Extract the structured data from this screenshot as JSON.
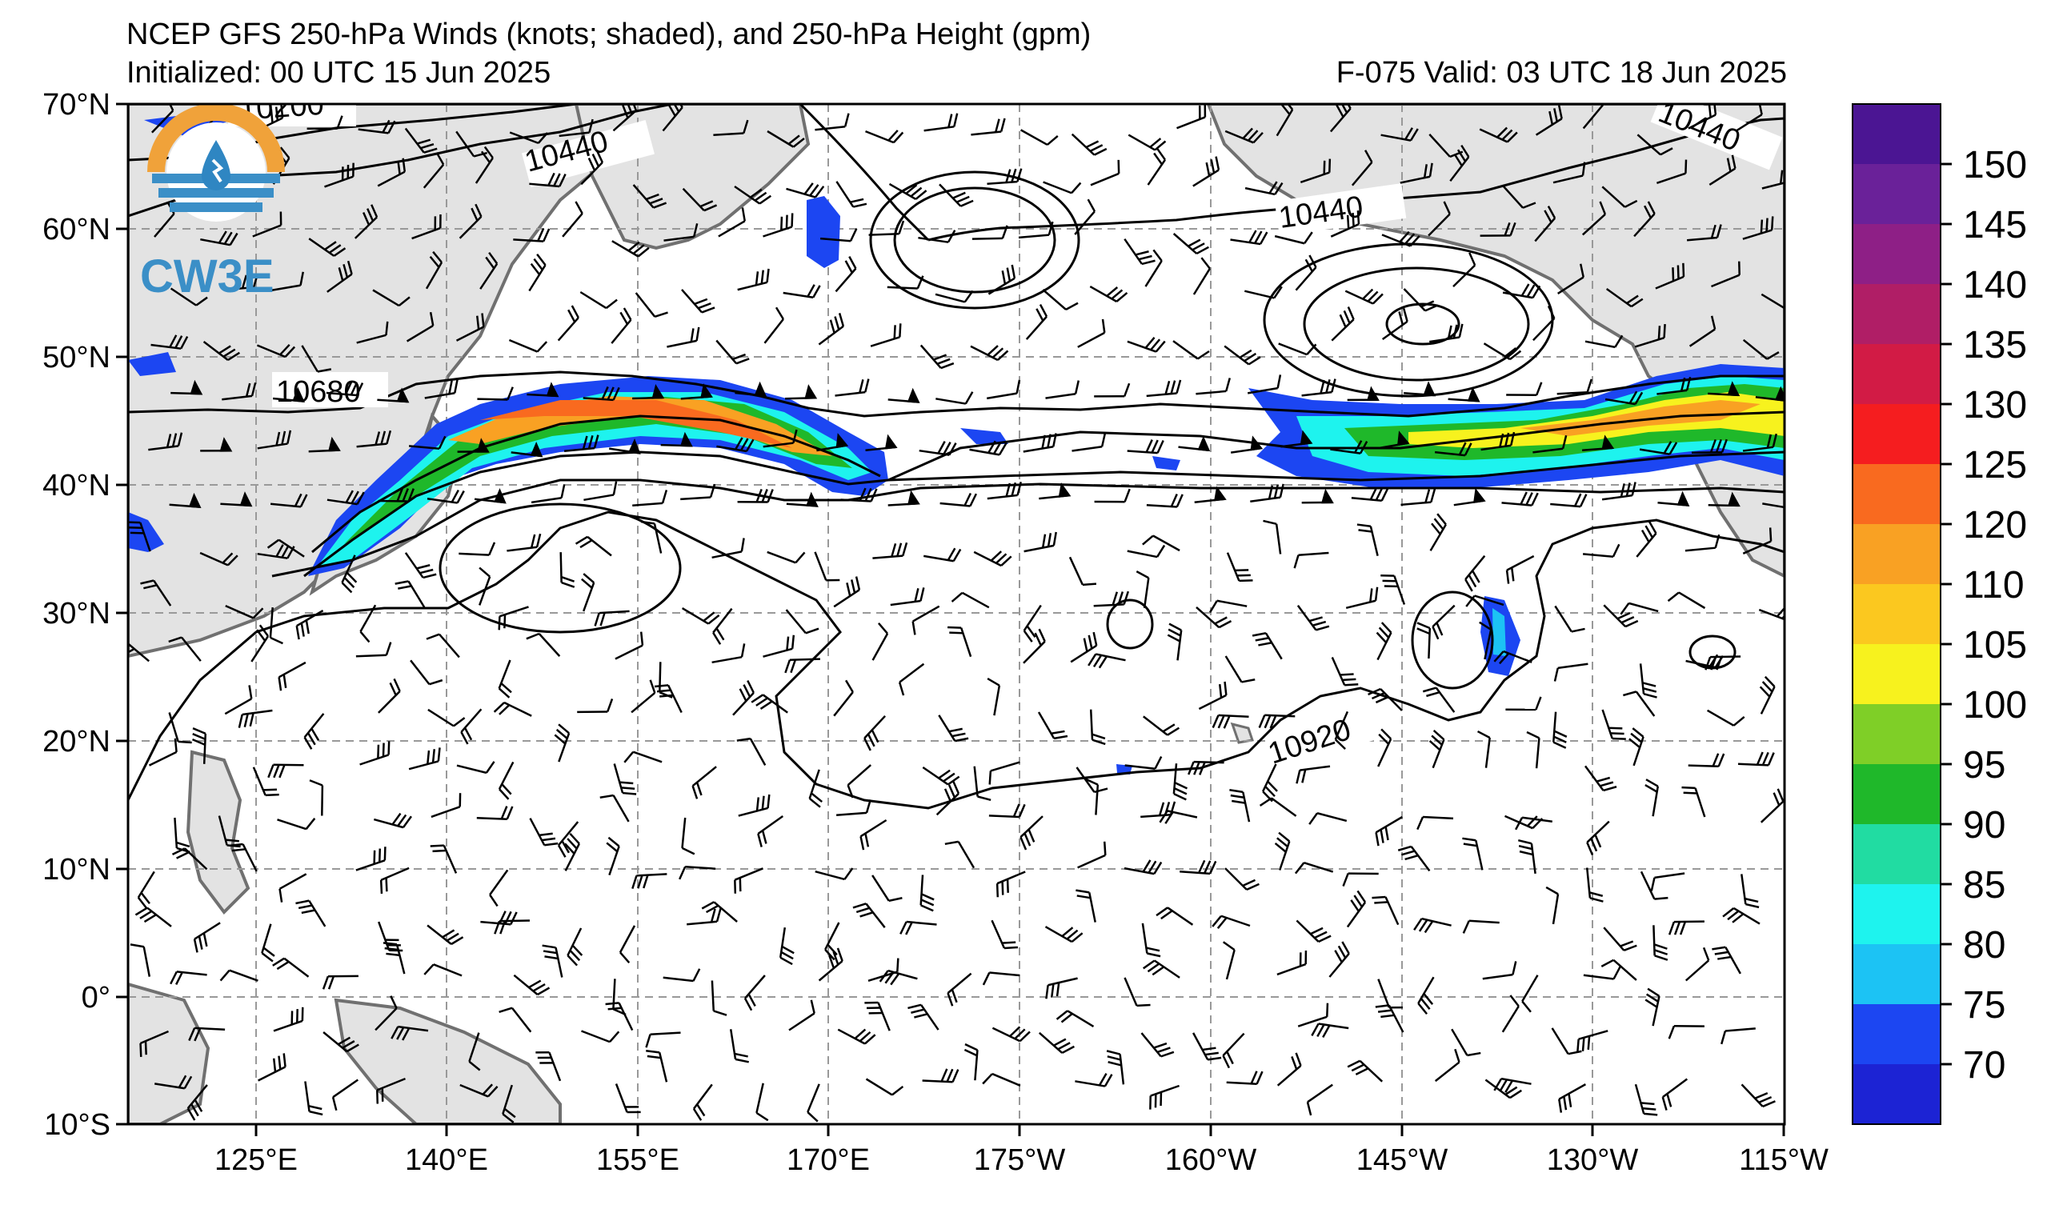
{
  "header": {
    "title": "NCEP GFS 250-hPa Winds (knots; shaded), and 250-hPa Height (gpm)",
    "initialized": "Initialized: 00 UTC 15 Jun 2025",
    "forecast": "F-075  Valid: 03 UTC 18 Jun 2025"
  },
  "logo": {
    "text": "CW3E",
    "ring_color": "#f0a23a",
    "drop_color": "#2f86c2",
    "text_color": "#3b8fc7"
  },
  "axes": {
    "lat_labels": [
      "70°N",
      "60°N",
      "50°N",
      "40°N",
      "30°N",
      "20°N",
      "10°N",
      "0°",
      "10°S"
    ],
    "lon_labels": [
      "125°E",
      "140°E",
      "155°E",
      "170°E",
      "175°W",
      "160°W",
      "145°W",
      "130°W",
      "115°W"
    ]
  },
  "contour_labels": [
    "10200",
    "10440",
    "10440",
    "10440",
    "10680",
    "10920"
  ],
  "colorbar": {
    "tick_labels": [
      "150",
      "145",
      "140",
      "135",
      "130",
      "125",
      "120",
      "110",
      "105",
      "100",
      "95",
      "90",
      "85",
      "80",
      "75",
      "70"
    ],
    "colors": [
      "#4b1593",
      "#6a2199",
      "#8e1f86",
      "#b01e66",
      "#d21b45",
      "#f51d1f",
      "#f96a1f",
      "#f9a123",
      "#fbc81f",
      "#f7f21e",
      "#7fcf27",
      "#1fb82a",
      "#21dca2",
      "#1ef3ee",
      "#1cc3f4",
      "#1c46f2",
      "#1c23d4"
    ]
  },
  "colors": {
    "land": "#e3e3e3",
    "coast": "#707070",
    "grid": "#999999",
    "contour": "#000000"
  }
}
